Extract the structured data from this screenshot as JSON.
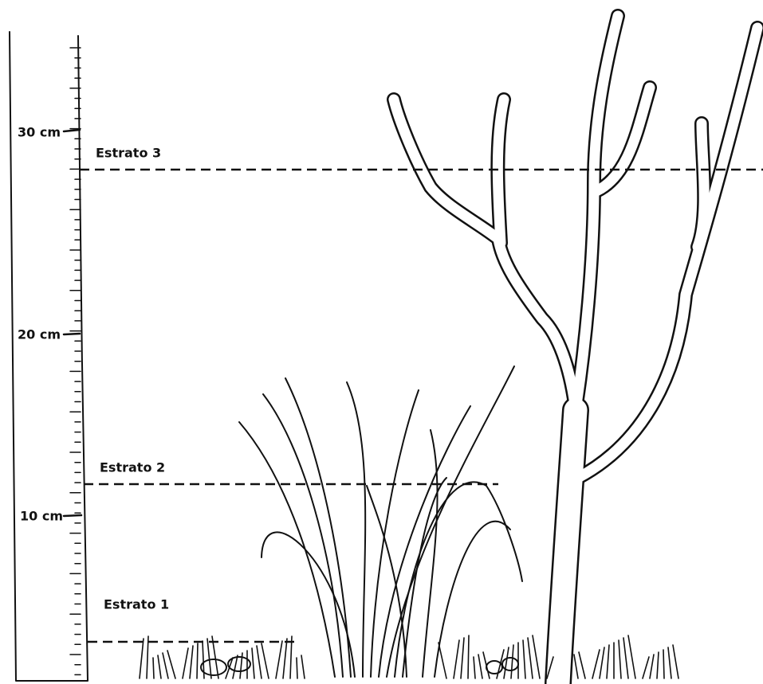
{
  "ruler": {
    "labels": [
      "30 cm",
      "20 cm",
      "10 cm"
    ]
  },
  "strata": [
    "Estrato 3",
    "Estrato 2",
    "Estrato 1"
  ]
}
